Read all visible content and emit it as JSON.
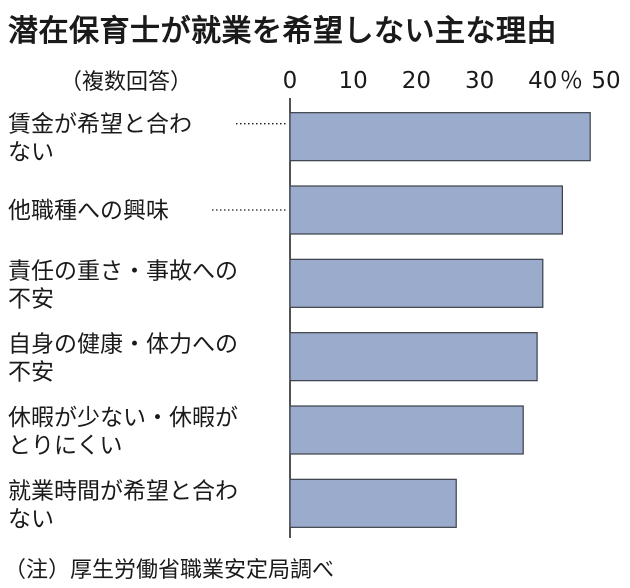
{
  "title": "潜在保育士が就業を希望しない主な理由",
  "note": "（複数回答）",
  "source": "（注）厚生労働省職業安定局調べ",
  "chart_data": {
    "type": "bar",
    "orientation": "horizontal",
    "categories": [
      [
        "賃金が希望と合わ",
        "ない"
      ],
      [
        "他職種への興味"
      ],
      [
        "責任の重さ・事故への",
        "不安"
      ],
      [
        "自身の健康・体力への",
        "不安"
      ],
      [
        "休暇が少ない・休暇が",
        "とりにくい"
      ],
      [
        "就業時間が希望と合わ",
        "ない"
      ]
    ],
    "values": [
      47.5,
      43.1,
      40.0,
      39.1,
      36.9,
      26.3
    ],
    "ticks": [
      "0",
      "10",
      "20",
      "30",
      "40",
      "50"
    ],
    "unit": "％",
    "xlim": [
      0,
      50
    ],
    "grid": false,
    "bar_color": "#9aabcb",
    "bar_stroke": "#3a3f4a",
    "leader_lines": [
      0,
      1
    ]
  }
}
